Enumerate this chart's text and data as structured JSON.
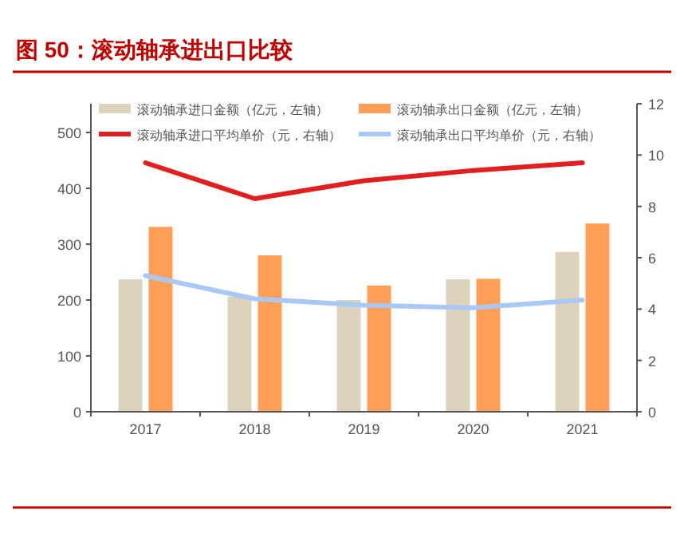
{
  "chart_data": {
    "type": "bar",
    "title": "图 50：滚动轴承进出口比较",
    "categories": [
      "2017",
      "2018",
      "2019",
      "2020",
      "2021"
    ],
    "series": [
      {
        "name": "滚动轴承进口金额（亿元，左轴）",
        "color": "#ddd3bc",
        "values": [
          237,
          206,
          200,
          237,
          286
        ]
      },
      {
        "name": "滚动轴承出口金额（亿元，左轴）",
        "color": "#ff9e57",
        "values": [
          331,
          280,
          226,
          238,
          337
        ]
      },
      {
        "name": "滚动轴承进口平均单价（元，右轴）",
        "type": "line",
        "axis": "y2",
        "color": "#e02020",
        "values": [
          9.7,
          8.3,
          9.0,
          9.4,
          9.7
        ]
      },
      {
        "name": "滚动轴承出口平均单价（元，右轴）",
        "type": "line",
        "axis": "y2",
        "color": "#a9c8f5",
        "values": [
          5.3,
          4.4,
          4.15,
          4.05,
          4.35
        ]
      }
    ],
    "ylim": [
      0,
      500
    ],
    "yticks": [
      0,
      100,
      200,
      300,
      400,
      500
    ],
    "y2lim": [
      0,
      12
    ],
    "y2ticks": [
      0,
      2,
      4,
      6,
      8,
      10,
      12
    ],
    "legend": "top",
    "grid": false
  }
}
